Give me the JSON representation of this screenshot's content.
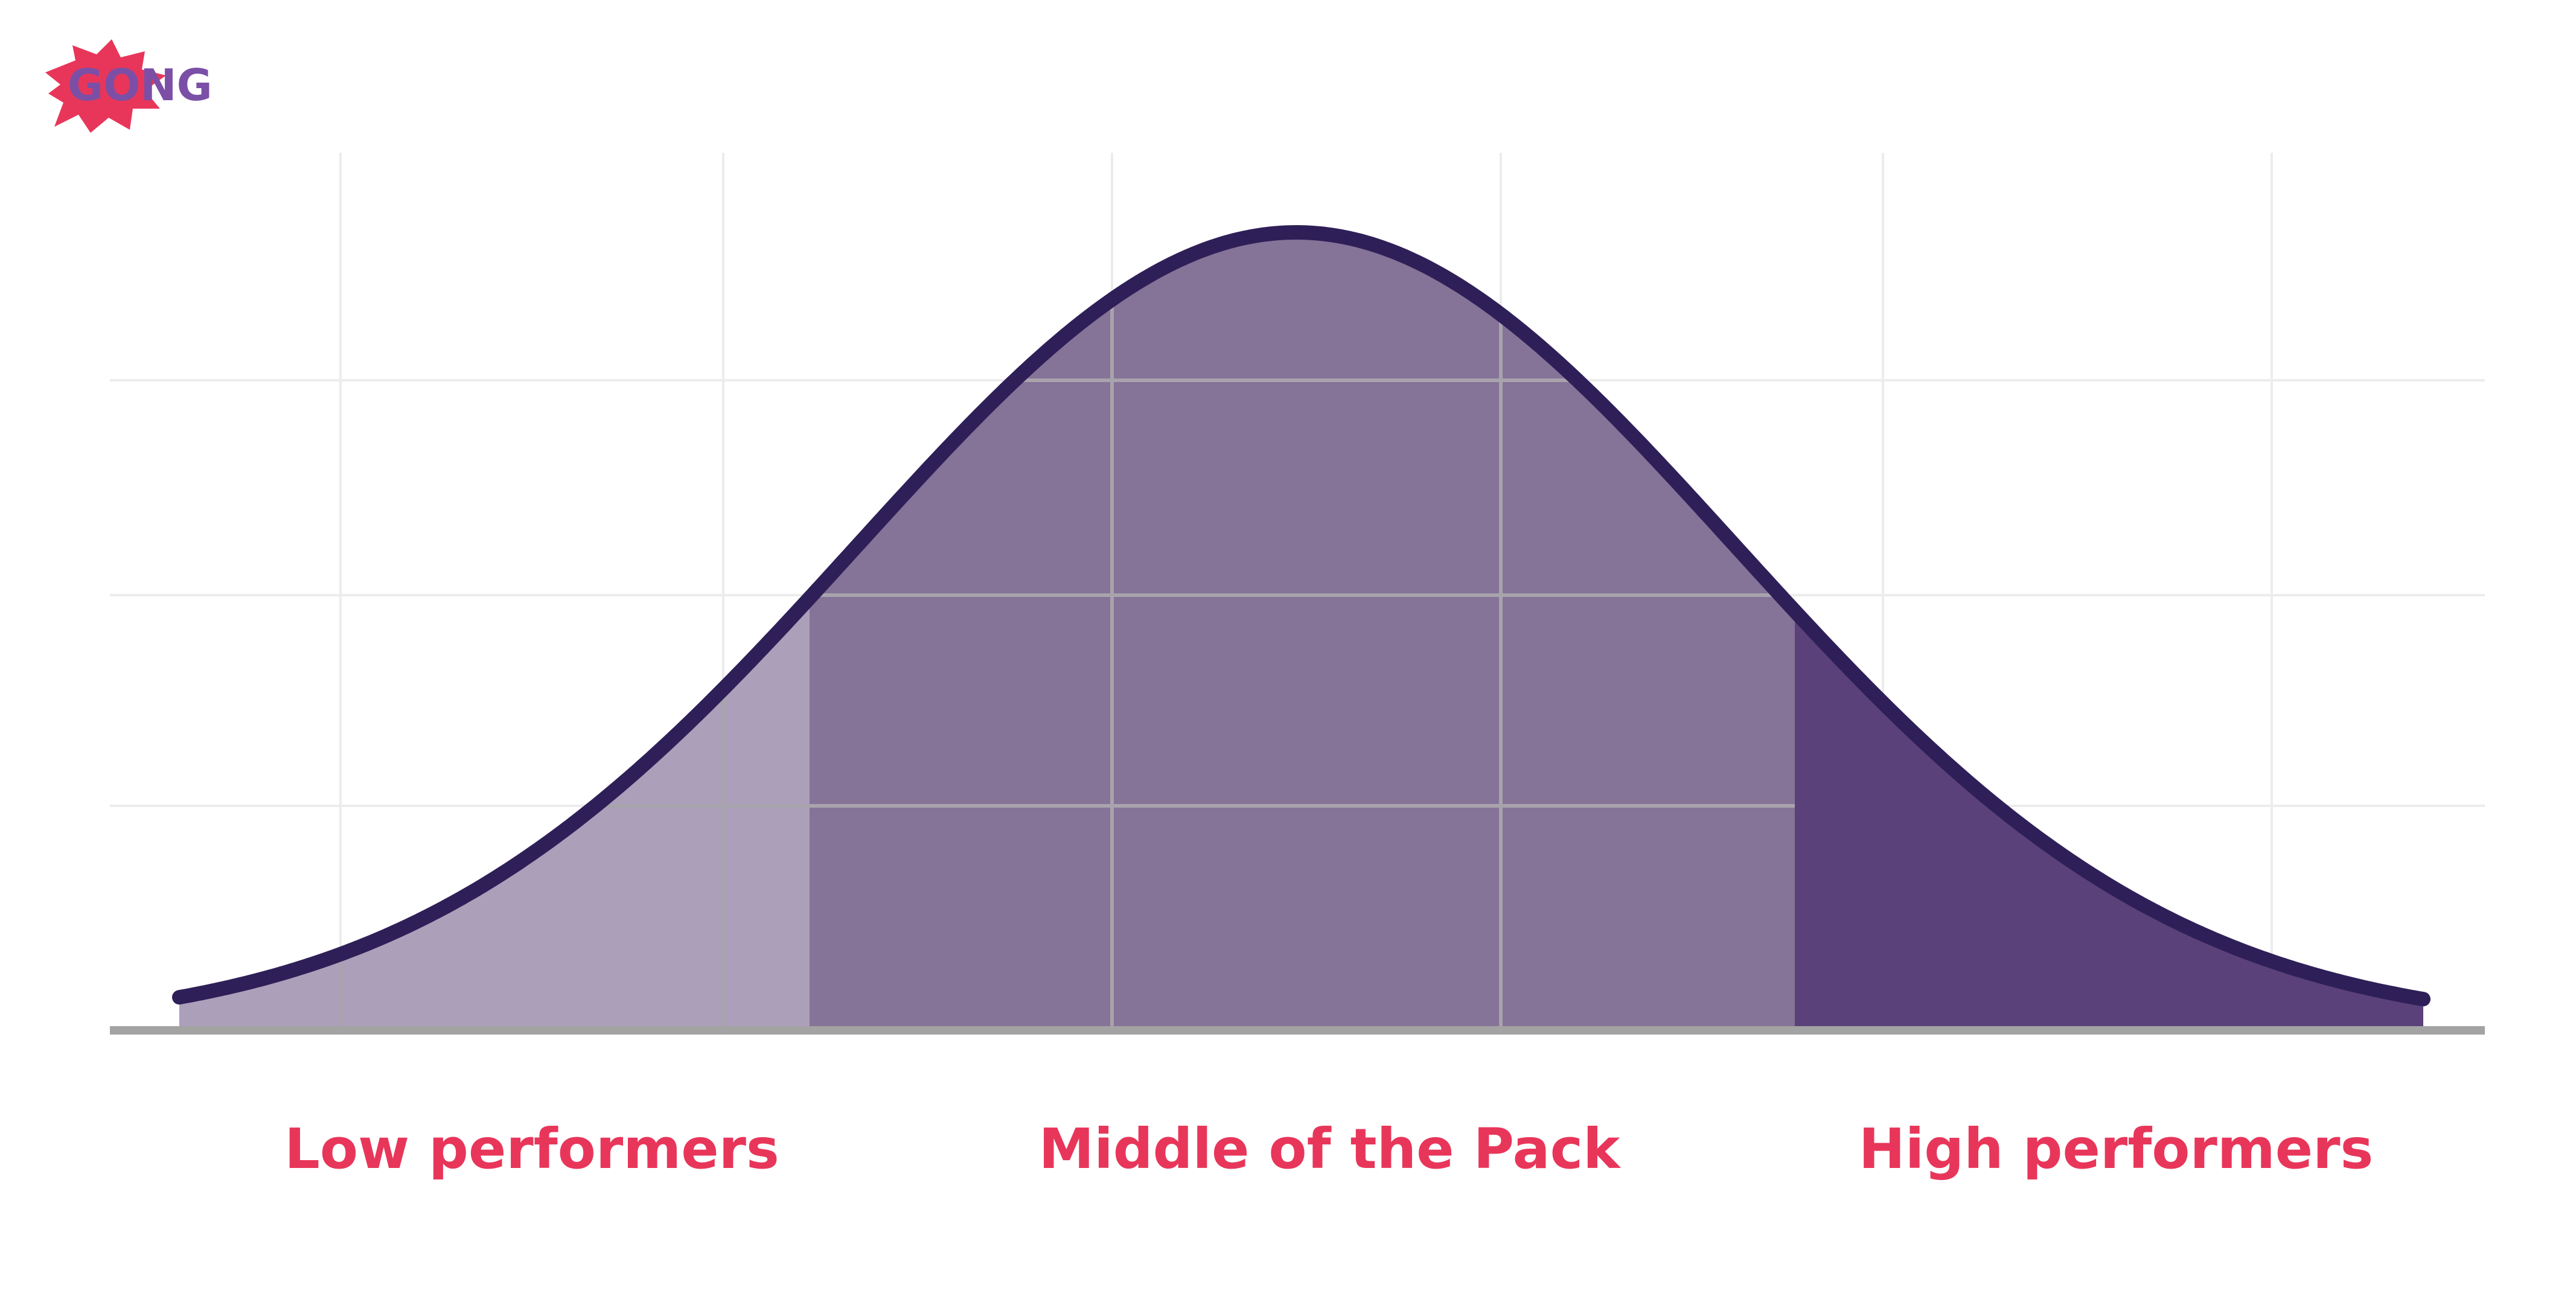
{
  "logo": {
    "text": "GONG"
  },
  "labels": {
    "low": "Low performers",
    "middle": "Middle of the Pack",
    "high": "High performers"
  }
}
